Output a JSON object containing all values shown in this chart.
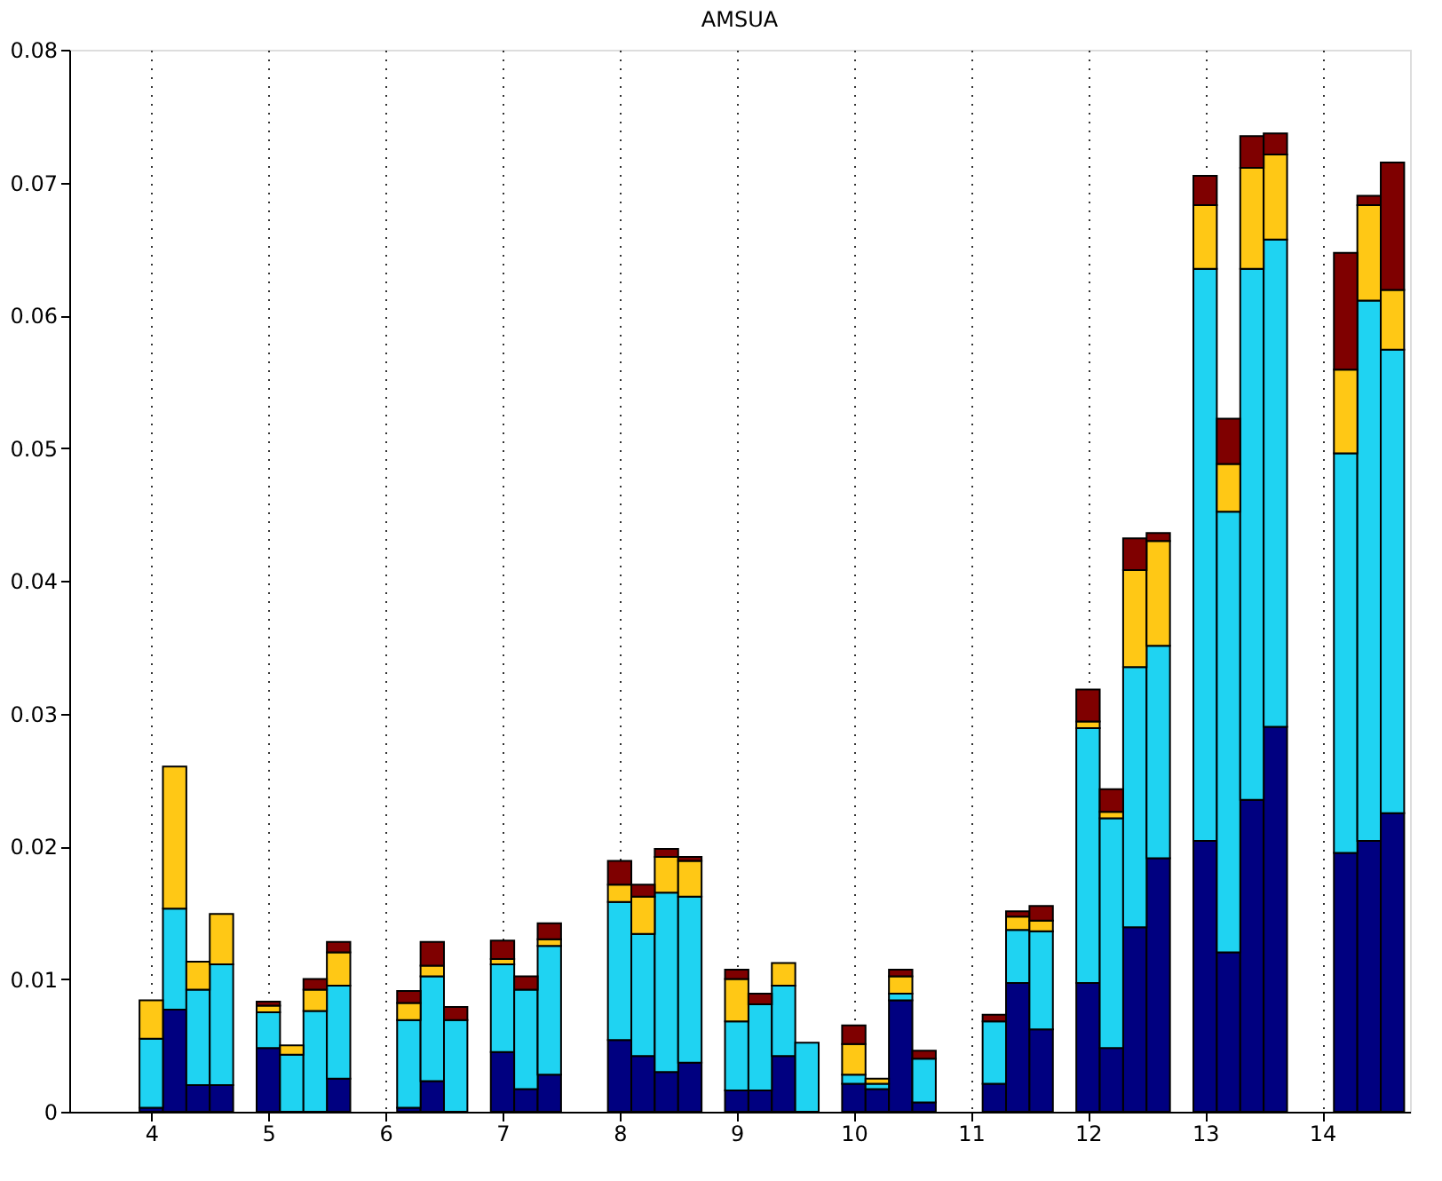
{
  "chart_data": {
    "type": "bar",
    "title": "AMSUA",
    "stacked": true,
    "grid": "x",
    "legend": false,
    "x": [
      4.0,
      4.2,
      4.4,
      4.6,
      5.0,
      5.2,
      5.4,
      5.6,
      6.2,
      6.4,
      6.6,
      7.0,
      7.2,
      7.4,
      8.0,
      8.2,
      8.4,
      8.6,
      9.0,
      9.2,
      9.4,
      9.6,
      10.0,
      10.2,
      10.4,
      10.6,
      11.2,
      11.4,
      11.6,
      12.0,
      12.2,
      12.4,
      12.6,
      13.0,
      13.2,
      13.4,
      13.6,
      14.2,
      14.4,
      14.6
    ],
    "xlim": [
      3.3,
      14.75
    ],
    "xticks": [
      4,
      5,
      6,
      7,
      8,
      9,
      10,
      11,
      12,
      13,
      14
    ],
    "ylim": [
      0,
      0.08
    ],
    "yticks": [
      0,
      0.01,
      0.02,
      0.03,
      0.04,
      0.05,
      0.06,
      0.07,
      0.08
    ],
    "series": [
      {
        "color": "#000080",
        "values": [
          0.0003,
          0.0077,
          0.002,
          0.002,
          0.0048,
          0,
          0,
          0.0025,
          0.0003,
          0.0023,
          0,
          0.0045,
          0.0017,
          0.0028,
          0.0054,
          0.0042,
          0.003,
          0.0037,
          0.0016,
          0.0016,
          0.0042,
          null,
          0.0021,
          0.0017,
          0.0084,
          0.0007,
          0.0021,
          0.0097,
          0.0062,
          0.0097,
          0.0048,
          0.0139,
          0.0191,
          0.0204,
          0.012,
          0.0235,
          0.029,
          0.0195,
          0.0204,
          0.0225
        ]
      },
      {
        "color": "#1fd3f2",
        "values": [
          0.0052,
          0.0076,
          0.0072,
          0.0091,
          0.0027,
          0.0043,
          0.0076,
          0.007,
          0.0066,
          0.0079,
          0.0069,
          0.0066,
          0.0075,
          0.0097,
          0.0104,
          0.0092,
          0.0135,
          0.0125,
          0.0052,
          0.0065,
          0.0053,
          0.0052,
          0.0007,
          0.0004,
          0.0005,
          0.0033,
          0.0047,
          0.004,
          0.0074,
          0.0192,
          0.0173,
          0.0196,
          0.016,
          0.0431,
          0.0332,
          0.04,
          0.0367,
          0.0301,
          0.0407,
          0.0349
        ]
      },
      {
        "color": "#ffc815",
        "values": [
          0.0029,
          0.0107,
          0.0021,
          0.0038,
          0.0005,
          0.0007,
          0.0016,
          0.0025,
          0.0013,
          0.0008,
          0,
          0.0004,
          0,
          0.0005,
          0.0013,
          0.0028,
          0.0027,
          0.0027,
          0.0032,
          0,
          0.0017,
          0,
          0.0023,
          0.0004,
          0.0013,
          0,
          0,
          0.001,
          0.0008,
          0.0005,
          0.0005,
          0.0073,
          0.0079,
          0.0048,
          0.0036,
          0.0076,
          0.0064,
          0.0063,
          0.0072,
          0.0045
        ]
      },
      {
        "color": "#7f0000",
        "values": [
          0,
          0,
          0,
          0,
          0.0003,
          0,
          0.0008,
          0.0008,
          0.0009,
          0.0018,
          0.001,
          0.0014,
          0.001,
          0.0012,
          0.0018,
          0.0009,
          0.0006,
          0.0003,
          0.0007,
          0.0008,
          0,
          0,
          0.0014,
          0,
          0.0005,
          0.0006,
          0.0005,
          0.0004,
          0.0011,
          0.0024,
          0.0017,
          0.0024,
          0.0006,
          0.0022,
          0.0034,
          0.0024,
          0.0016,
          0.0088,
          0.0007,
          0.0096
        ]
      }
    ]
  }
}
